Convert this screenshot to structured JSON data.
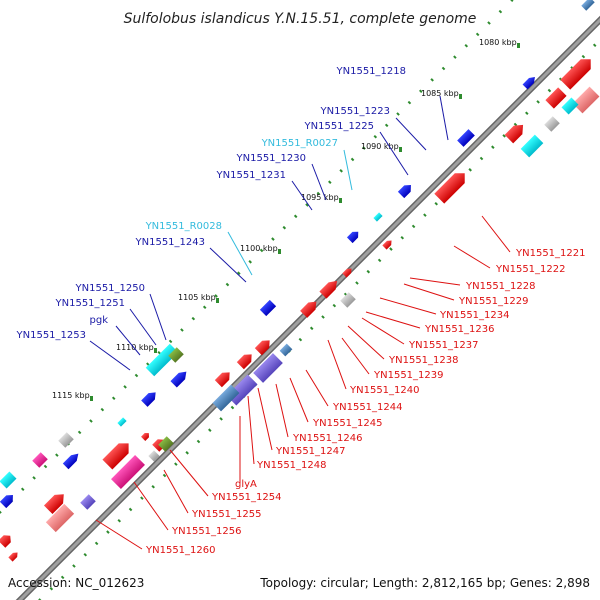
{
  "title": "Sulfolobus islandicus Y.N.15.51, complete genome",
  "footer": {
    "accession": "Accession: NC_012623",
    "summary": "Topology: circular; Length: 2,812,165 bp; Genes: 2,898"
  },
  "colors": {
    "backbone": "#8c8c8c",
    "tick": "#2e8b2e",
    "forward_label": "#1a1aa6",
    "rna_label": "#33bbdd",
    "reverse_label": "#dd1111",
    "forward_gene": "#1111dd",
    "reverse_gene": "#ee1111"
  },
  "ticks": [
    {
      "label": "1080 kbp"
    },
    {
      "label": "1085 kbp"
    },
    {
      "label": "1090 kbp"
    },
    {
      "label": "1095 kbp"
    },
    {
      "label": "1100 kbp"
    },
    {
      "label": "1105 kbp"
    },
    {
      "label": "1110 kbp"
    },
    {
      "label": "1115 kbp"
    }
  ],
  "forward_labels": [
    {
      "text": "YN1551_1218",
      "type": "cds"
    },
    {
      "text": "YN1551_1223",
      "type": "cds"
    },
    {
      "text": "YN1551_1225",
      "type": "cds"
    },
    {
      "text": "YN1551_R0027",
      "type": "rna"
    },
    {
      "text": "YN1551_1230",
      "type": "cds"
    },
    {
      "text": "YN1551_1231",
      "type": "cds"
    },
    {
      "text": "YN1551_R0028",
      "type": "rna"
    },
    {
      "text": "YN1551_1243",
      "type": "cds"
    },
    {
      "text": "YN1551_1250",
      "type": "cds"
    },
    {
      "text": "YN1551_1251",
      "type": "cds"
    },
    {
      "text": "pgk",
      "type": "cds"
    },
    {
      "text": "YN1551_1253",
      "type": "cds"
    }
  ],
  "reverse_labels": [
    {
      "text": "YN1551_1221"
    },
    {
      "text": "YN1551_1222"
    },
    {
      "text": "YN1551_1228"
    },
    {
      "text": "YN1551_1229"
    },
    {
      "text": "YN1551_1234"
    },
    {
      "text": "YN1551_1236"
    },
    {
      "text": "YN1551_1237"
    },
    {
      "text": "YN1551_1238"
    },
    {
      "text": "YN1551_1239"
    },
    {
      "text": "YN1551_1240"
    },
    {
      "text": "YN1551_1244"
    },
    {
      "text": "YN1551_1245"
    },
    {
      "text": "YN1551_1246"
    },
    {
      "text": "YN1551_1247"
    },
    {
      "text": "YN1551_1248"
    },
    {
      "text": "glyA"
    },
    {
      "text": "YN1551_1254"
    },
    {
      "text": "YN1551_1255"
    },
    {
      "text": "YN1551_1256"
    },
    {
      "text": "YN1551_1260"
    }
  ]
}
